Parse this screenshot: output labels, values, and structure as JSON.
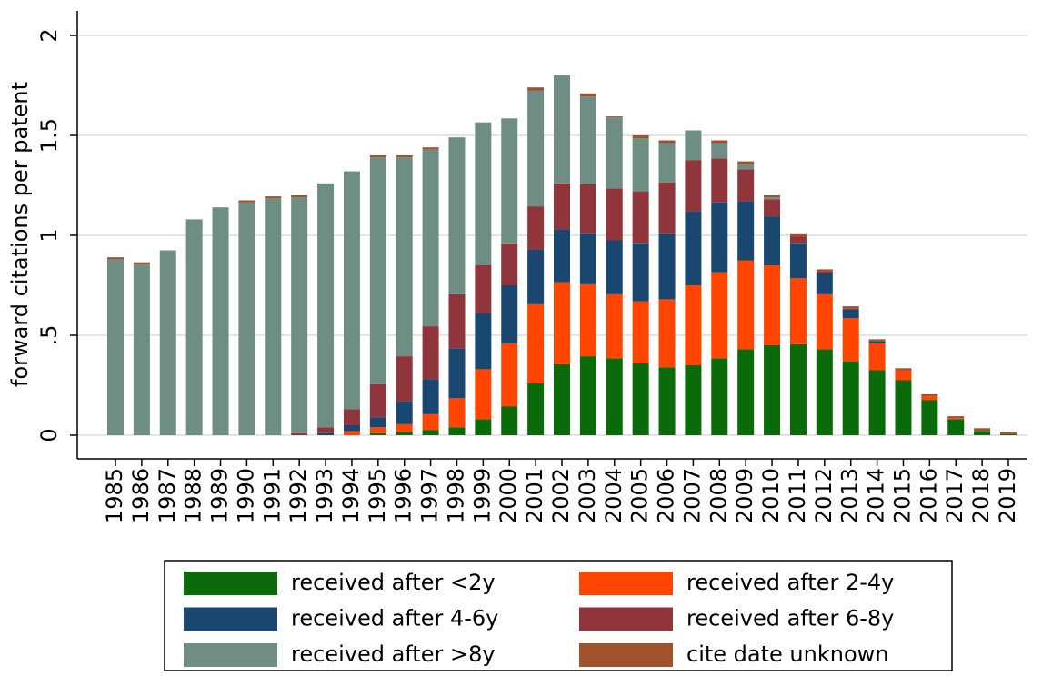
{
  "chart_data": {
    "type": "stacked_bar",
    "y_label": "forward citations per patent",
    "categories": [
      "1985",
      "1986",
      "1987",
      "1988",
      "1989",
      "1990",
      "1991",
      "1992",
      "1993",
      "1994",
      "1995",
      "1996",
      "1997",
      "1998",
      "1999",
      "2000",
      "2001",
      "2002",
      "2003",
      "2004",
      "2005",
      "2006",
      "2007",
      "2008",
      "2009",
      "2010",
      "2011",
      "2012",
      "2013",
      "2014",
      "2015",
      "2016",
      "2017",
      "2018",
      "2019"
    ],
    "series": [
      {
        "name": "received after <2y",
        "color": "#0b6b0b",
        "values": [
          0,
          0,
          0,
          0,
          0,
          0,
          0,
          0,
          0,
          0,
          0.01,
          0.015,
          0.025,
          0.04,
          0.08,
          0.145,
          0.26,
          0.355,
          0.395,
          0.385,
          0.36,
          0.34,
          0.35,
          0.385,
          0.43,
          0.45,
          0.455,
          0.43,
          0.37,
          0.325,
          0.275,
          0.175,
          0.08,
          0.02,
          0.005
        ]
      },
      {
        "name": "received after 2-4y",
        "color": "#ff4500",
        "values": [
          0,
          0,
          0,
          0,
          0,
          0,
          0,
          0,
          0,
          0.02,
          0.03,
          0.04,
          0.08,
          0.145,
          0.25,
          0.315,
          0.395,
          0.41,
          0.36,
          0.32,
          0.31,
          0.34,
          0.4,
          0.43,
          0.445,
          0.4,
          0.33,
          0.275,
          0.215,
          0.135,
          0.05,
          0.02,
          0.005,
          0,
          0
        ]
      },
      {
        "name": "received after 4-6y",
        "color": "#1a476f",
        "values": [
          0,
          0,
          0,
          0,
          0,
          0,
          0,
          0,
          0.01,
          0.03,
          0.05,
          0.115,
          0.175,
          0.25,
          0.28,
          0.29,
          0.275,
          0.265,
          0.255,
          0.27,
          0.29,
          0.33,
          0.37,
          0.35,
          0.295,
          0.245,
          0.175,
          0.105,
          0.045,
          0.01,
          0,
          0,
          0,
          0,
          0
        ]
      },
      {
        "name": "received after 6-8y",
        "color": "#90353b",
        "values": [
          0,
          0,
          0,
          0,
          0,
          0,
          0,
          0.01,
          0.03,
          0.08,
          0.165,
          0.225,
          0.265,
          0.27,
          0.24,
          0.21,
          0.215,
          0.23,
          0.245,
          0.26,
          0.26,
          0.255,
          0.255,
          0.22,
          0.16,
          0.085,
          0.035,
          0.01,
          0.005,
          0,
          0,
          0,
          0,
          0,
          0
        ]
      },
      {
        "name": "received after >8y",
        "color": "#6e8e84",
        "values": [
          0.88,
          0.855,
          0.925,
          1.08,
          1.14,
          1.165,
          1.185,
          1.18,
          1.22,
          1.19,
          1.135,
          0.995,
          0.885,
          0.785,
          0.715,
          0.625,
          0.58,
          0.54,
          0.44,
          0.355,
          0.265,
          0.195,
          0.15,
          0.075,
          0.025,
          0.01,
          0,
          0,
          0,
          0,
          0,
          0,
          0,
          0,
          0
        ]
      },
      {
        "name": "cite date unknown",
        "color": "#a0522d",
        "values": [
          0.01,
          0.01,
          0,
          0,
          0,
          0.01,
          0.01,
          0.01,
          0,
          0,
          0.01,
          0.01,
          0.01,
          0,
          0,
          0,
          0.015,
          0,
          0.015,
          0.005,
          0.015,
          0.015,
          0,
          0.015,
          0.015,
          0.01,
          0.015,
          0.01,
          0.01,
          0.01,
          0.01,
          0.01,
          0.01,
          0.015,
          0.01
        ]
      }
    ],
    "ylim": [
      0,
      2
    ],
    "yticks": [
      0,
      {
        "value": 0.5,
        "label": ".5"
      },
      1,
      1.5,
      2
    ],
    "grid": true,
    "legend": "bottom"
  }
}
